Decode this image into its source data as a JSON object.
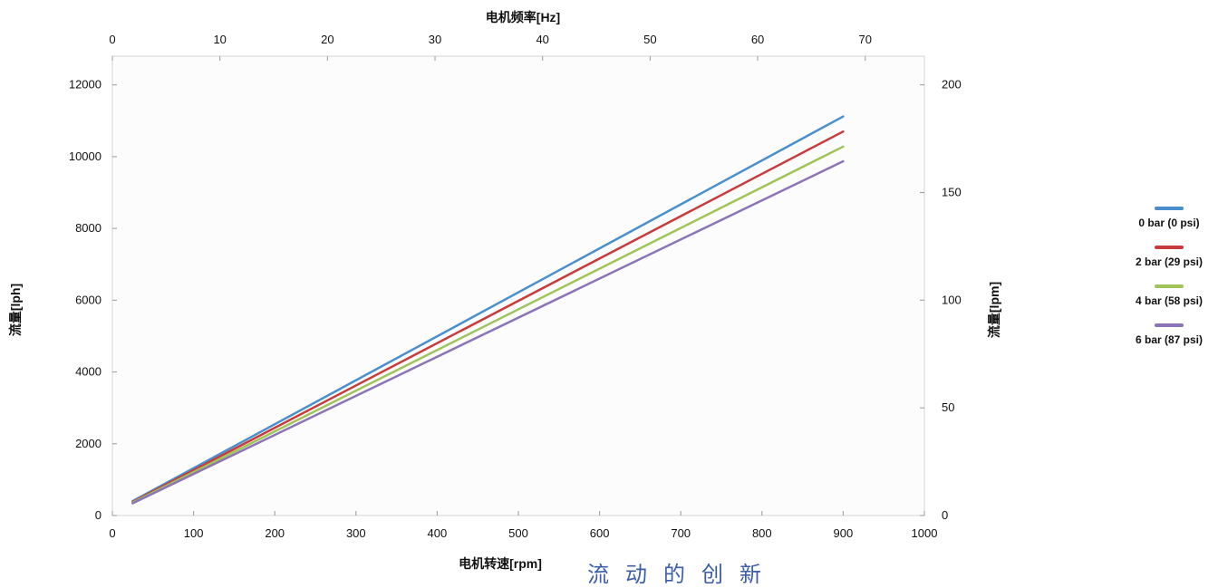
{
  "chart_data": {
    "type": "line",
    "x_bottom": {
      "label": "电机转速[rpm]",
      "range": [
        0,
        1000
      ],
      "ticks": [
        0,
        100,
        200,
        300,
        400,
        500,
        600,
        700,
        800,
        900,
        1000
      ]
    },
    "x_top": {
      "label": "电机频率[Hz]",
      "range": [
        0,
        75.5
      ],
      "ticks": [
        0,
        10,
        20,
        30,
        40,
        50,
        60,
        70
      ]
    },
    "y_left": {
      "label": "流量[lph]",
      "range": [
        0,
        12800
      ],
      "ticks": [
        0,
        2000,
        4000,
        6000,
        8000,
        10000,
        12000
      ]
    },
    "y_right": {
      "label": "流量[lpm]",
      "range": [
        0,
        213.3
      ],
      "ticks": [
        0,
        50,
        100,
        150,
        200
      ]
    },
    "x": [
      25,
      900
    ],
    "series": [
      {
        "name": "0 bar (0 psi)",
        "color": "#4a8fcd",
        "values": [
          400,
          11120
        ]
      },
      {
        "name": "2 bar (29 psi)",
        "color": "#c93a3a",
        "values": [
          380,
          10700
        ]
      },
      {
        "name": "4 bar (58 psi)",
        "color": "#9ec45a",
        "values": [
          360,
          10280
        ]
      },
      {
        "name": "6 bar (87 psi)",
        "color": "#8b74b8",
        "values": [
          340,
          9870
        ]
      }
    ],
    "legend_position": "right",
    "grid": false,
    "plot_background": "#fcfcfc"
  },
  "footer": {
    "text": "流动的创新"
  }
}
